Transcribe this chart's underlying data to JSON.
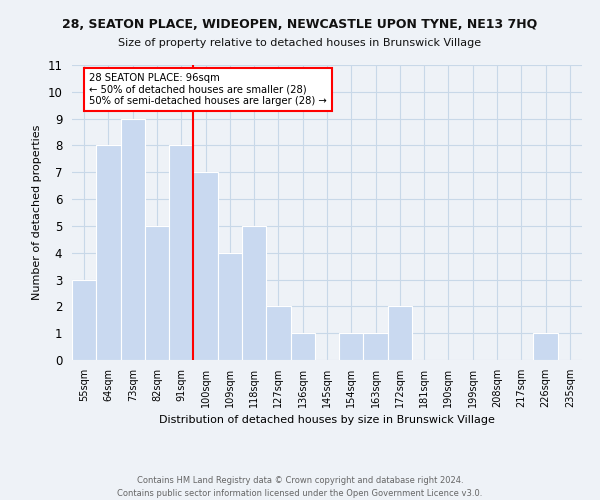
{
  "title": "28, SEATON PLACE, WIDEOPEN, NEWCASTLE UPON TYNE, NE13 7HQ",
  "subtitle": "Size of property relative to detached houses in Brunswick Village",
  "xlabel": "Distribution of detached houses by size in Brunswick Village",
  "ylabel": "Number of detached properties",
  "bin_labels": [
    "55sqm",
    "64sqm",
    "73sqm",
    "82sqm",
    "91sqm",
    "100sqm",
    "109sqm",
    "118sqm",
    "127sqm",
    "136sqm",
    "145sqm",
    "154sqm",
    "163sqm",
    "172sqm",
    "181sqm",
    "190sqm",
    "199sqm",
    "208sqm",
    "217sqm",
    "226sqm",
    "235sqm"
  ],
  "bin_counts": [
    3,
    8,
    9,
    5,
    8,
    7,
    4,
    5,
    2,
    1,
    0,
    1,
    1,
    2,
    0,
    0,
    0,
    0,
    0,
    1,
    0
  ],
  "bar_color": "#c9d9f0",
  "bar_edge_color": "#ffffff",
  "grid_color": "#c8d8e8",
  "red_line_x": 4.5,
  "annotation_text_line1": "28 SEATON PLACE: 96sqm",
  "annotation_text_line2": "← 50% of detached houses are smaller (28)",
  "annotation_text_line3": "50% of semi-detached houses are larger (28) →",
  "ylim": [
    0,
    11
  ],
  "yticks": [
    0,
    1,
    2,
    3,
    4,
    5,
    6,
    7,
    8,
    9,
    10,
    11
  ],
  "footer_line1": "Contains HM Land Registry data © Crown copyright and database right 2024.",
  "footer_line2": "Contains public sector information licensed under the Open Government Licence v3.0.",
  "background_color": "#eef2f7"
}
